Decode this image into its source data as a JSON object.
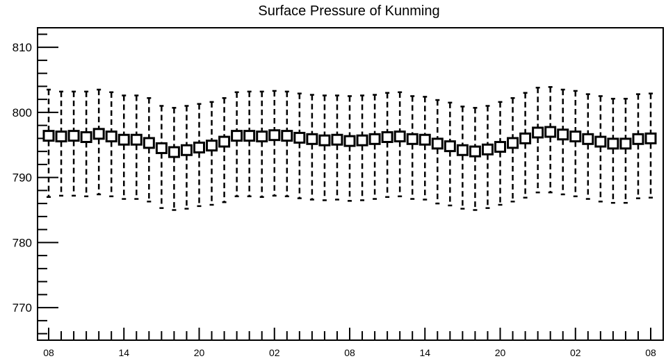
{
  "chart_data": {
    "type": "boxplot",
    "title": "Surface Pressure of Kunming",
    "xlabel": "",
    "ylabel": "",
    "ylim": [
      765,
      813
    ],
    "y_ticks": [
      770,
      780,
      790,
      800,
      810
    ],
    "x_tick_labels": [
      {
        "index": 0,
        "label": "08"
      },
      {
        "index": 6,
        "label": "14"
      },
      {
        "index": 12,
        "label": "20"
      },
      {
        "index": 18,
        "label": "02"
      },
      {
        "index": 24,
        "label": "08"
      },
      {
        "index": 30,
        "label": "14"
      },
      {
        "index": 36,
        "label": "20"
      },
      {
        "index": 42,
        "label": "02"
      },
      {
        "index": 48,
        "label": "08"
      }
    ],
    "grid": false,
    "series": [
      {
        "median": [
          796.4,
          796.3,
          796.4,
          796.2,
          796.7,
          796.3,
          795.8,
          795.8,
          795.3,
          794.5,
          793.9,
          794.2,
          794.6,
          794.9,
          795.5,
          796.4,
          796.4,
          796.3,
          796.5,
          796.4,
          796.1,
          795.9,
          795.7,
          795.8,
          795.6,
          795.7,
          795.9,
          796.2,
          796.3,
          795.9,
          795.8,
          795.2,
          794.8,
          794.2,
          794.0,
          794.3,
          794.7,
          795.3,
          796.0,
          796.9,
          797.0,
          796.6,
          796.3,
          795.9,
          795.5,
          795.2,
          795.2,
          795.9,
          796.0
        ],
        "upper": [
          803.5,
          803.2,
          803.2,
          803.2,
          803.5,
          803.1,
          802.6,
          802.6,
          802.2,
          801.0,
          800.7,
          801.0,
          801.3,
          801.6,
          802.2,
          803.1,
          803.2,
          803.2,
          803.3,
          803.2,
          802.9,
          802.7,
          802.6,
          802.6,
          802.5,
          802.6,
          802.7,
          803.0,
          803.1,
          802.5,
          802.4,
          801.9,
          801.5,
          800.9,
          800.7,
          801.0,
          801.6,
          802.2,
          803.0,
          803.8,
          803.9,
          803.5,
          803.3,
          802.8,
          802.5,
          802.1,
          802.1,
          802.8,
          802.9
        ],
        "lower": [
          787.0,
          787.2,
          787.2,
          787.1,
          787.4,
          787.1,
          786.7,
          786.7,
          786.3,
          785.3,
          785.0,
          785.2,
          785.6,
          785.8,
          786.2,
          787.1,
          787.1,
          787.0,
          787.2,
          787.1,
          786.8,
          786.6,
          786.5,
          786.6,
          786.4,
          786.5,
          786.7,
          787.0,
          787.1,
          786.7,
          786.6,
          786.0,
          785.7,
          785.2,
          785.0,
          785.3,
          785.8,
          786.3,
          786.9,
          787.7,
          787.7,
          787.4,
          787.1,
          786.7,
          786.3,
          786.1,
          786.1,
          786.8,
          786.9
        ]
      }
    ]
  }
}
